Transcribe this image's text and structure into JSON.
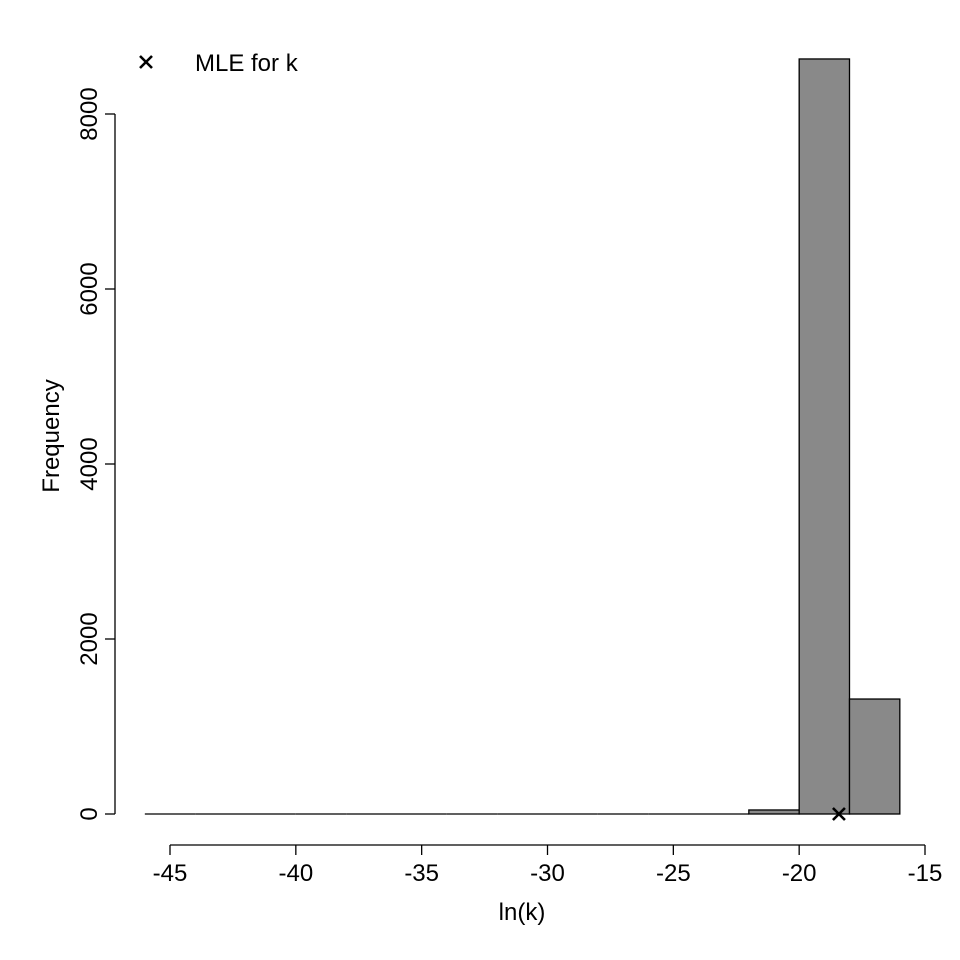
{
  "chart_data": {
    "type": "bar",
    "subtype": "histogram",
    "title": "",
    "xlabel": "ln(k)",
    "ylabel": "Frequency",
    "xlim": [
      -46,
      -15
    ],
    "ylim": [
      0,
      8000
    ],
    "x_ticks": [
      -45,
      -40,
      -35,
      -30,
      -25,
      -20,
      -15
    ],
    "y_ticks": [
      0,
      2000,
      4000,
      6000,
      8000
    ],
    "grid": false,
    "bin_width": 2,
    "bins": [
      {
        "x0": -46,
        "x1": -44,
        "count": 0
      },
      {
        "x0": -44,
        "x1": -42,
        "count": 0
      },
      {
        "x0": -42,
        "x1": -40,
        "count": 0
      },
      {
        "x0": -40,
        "x1": -38,
        "count": 0
      },
      {
        "x0": -38,
        "x1": -36,
        "count": 0
      },
      {
        "x0": -36,
        "x1": -34,
        "count": 0
      },
      {
        "x0": -34,
        "x1": -32,
        "count": 0
      },
      {
        "x0": -32,
        "x1": -30,
        "count": 0
      },
      {
        "x0": -30,
        "x1": -28,
        "count": 0
      },
      {
        "x0": -28,
        "x1": -26,
        "count": 0
      },
      {
        "x0": -26,
        "x1": -24,
        "count": 0
      },
      {
        "x0": -24,
        "x1": -22,
        "count": 0
      },
      {
        "x0": -22,
        "x1": -20,
        "count": 46
      },
      {
        "x0": -20,
        "x1": -18,
        "count": 8629
      },
      {
        "x0": -18,
        "x1": -16,
        "count": 1314
      }
    ],
    "bar_color": "#898989",
    "edge_color": "#000000",
    "markers": [
      {
        "label": "MLE for k",
        "x": -18.42,
        "y": 0,
        "symbol": "x"
      }
    ],
    "legend": {
      "position": "top-left",
      "entries": [
        {
          "symbol": "x",
          "label": "MLE for k"
        }
      ]
    }
  }
}
